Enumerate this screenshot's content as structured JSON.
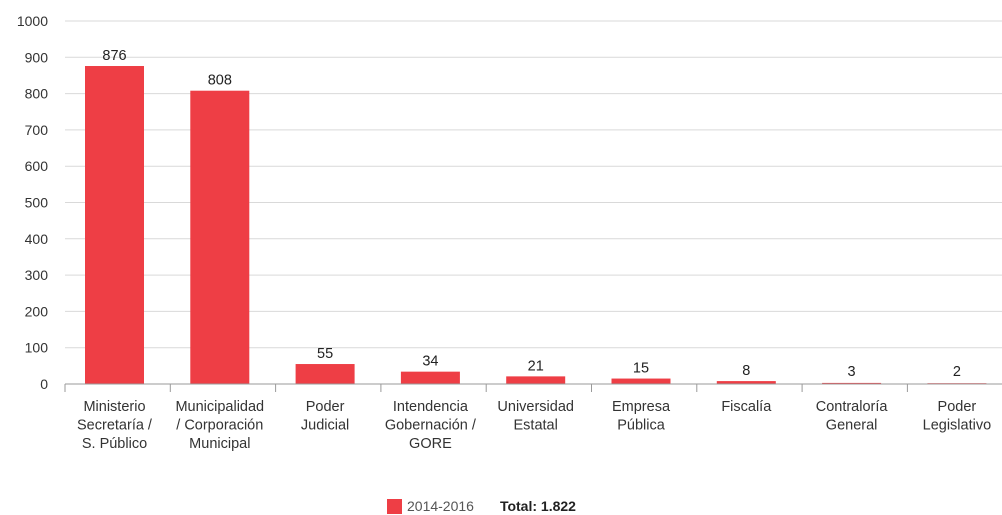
{
  "chart_data": {
    "type": "bar",
    "categories": [
      [
        "Ministerio",
        "Secretaría /",
        "S. Público"
      ],
      [
        "Municipalidad",
        "/ Corporación",
        "Municipal"
      ],
      [
        "Poder",
        "Judicial"
      ],
      [
        "Intendencia",
        "Gobernación /",
        "GORE"
      ],
      [
        "Universidad",
        "Estatal"
      ],
      [
        "Empresa",
        "Pública"
      ],
      [
        "Fiscalía"
      ],
      [
        "Contraloría",
        "General"
      ],
      [
        "Poder",
        "Legislativo"
      ]
    ],
    "series": [
      {
        "name": "2014-2016",
        "values": [
          876,
          808,
          55,
          34,
          21,
          15,
          8,
          3,
          2
        ],
        "color": "#ee3e45"
      }
    ],
    "value_labels": [
      "876",
      "808",
      "55",
      "34",
      "21",
      "15",
      "8",
      "3",
      "2"
    ],
    "ylim": [
      0,
      1000
    ],
    "yticks": [
      0,
      100,
      200,
      300,
      400,
      500,
      600,
      700,
      800,
      900,
      1000
    ],
    "ytick_labels": [
      "0",
      "100",
      "200",
      "300",
      "400",
      "500",
      "600",
      "700",
      "800",
      "900",
      "1000"
    ],
    "grid": true,
    "legend_position": "bottom-center"
  },
  "legend": {
    "series_label": "2014-2016",
    "total_label": "Total: 1.822"
  }
}
